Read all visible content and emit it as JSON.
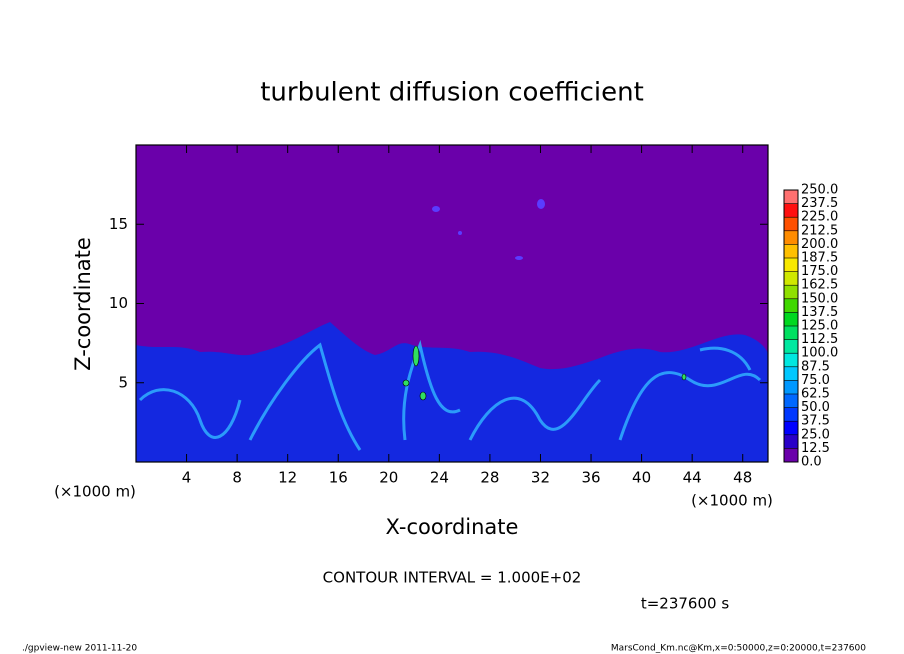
{
  "chart_data": {
    "type": "heatmap",
    "title": "turbulent diffusion coefficient",
    "xlabel": "X-coordinate",
    "ylabel": "Z-coordinate",
    "x_unit_label": "(×1000 m)",
    "y_unit_label": "(×1000 m)",
    "xlim": [
      0,
      50
    ],
    "xticks": [
      4,
      8,
      12,
      16,
      20,
      24,
      28,
      32,
      36,
      40,
      44,
      48
    ],
    "ylim": [
      0,
      20
    ],
    "yticks": [
      5,
      10,
      15
    ],
    "colorbar": {
      "levels": [
        {
          "value": 0,
          "label": "0.0"
        },
        12.5,
        {
          "value": 25,
          "label": "25.0"
        },
        37.5,
        {
          "value": 50,
          "label": "50.0"
        },
        62.5,
        {
          "value": 75,
          "label": "75.0"
        },
        87.5,
        {
          "value": 100,
          "label": "100.0"
        },
        112.5,
        {
          "value": 125,
          "label": "125.0"
        },
        137.5,
        {
          "value": 150,
          "label": "150.0"
        },
        162.5,
        {
          "value": 175,
          "label": "175.0"
        },
        187.5,
        {
          "value": 200,
          "label": "200.0"
        },
        212.5,
        {
          "value": 225,
          "label": "225.0"
        },
        237.5,
        {
          "value": 250,
          "label": "250.0"
        }
      ],
      "colors": [
        "#6a00aa",
        "#2a00c8",
        "#0000ff",
        "#0038ff",
        "#0068ff",
        "#0098ff",
        "#00c8ff",
        "#00e8e0",
        "#00e8a0",
        "#00e060",
        "#00d820",
        "#40d800",
        "#90e000",
        "#d0e800",
        "#f8e800",
        "#ffc000",
        "#ff8c00",
        "#ff5000",
        "#ff1010",
        "#ff7070"
      ]
    },
    "annotations": {
      "contour_interval": "CONTOUR INTERVAL = 1.000E+02",
      "time": "t=237600 s",
      "footer_left": "./gpview-new   2011-11-20",
      "footer_right": "MarsCond_Km.nc@Km,x=0:50000,z=0:20000,t=237600"
    }
  }
}
